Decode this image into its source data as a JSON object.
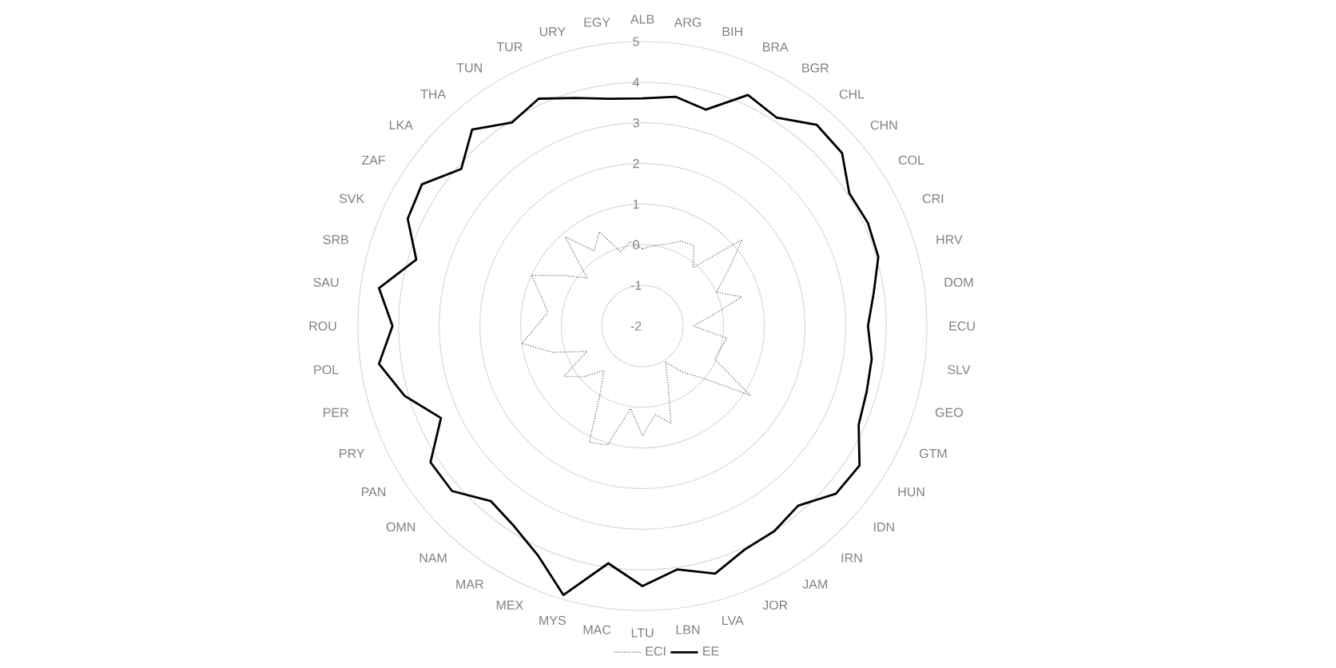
{
  "chart_data": {
    "type": "radar",
    "categories": [
      "ALB",
      "ARG",
      "BIH",
      "BRA",
      "BGR",
      "CHL",
      "CHN",
      "COL",
      "CRI",
      "HRV",
      "DOM",
      "ECU",
      "SLV",
      "GEO",
      "GTM",
      "HUN",
      "IDN",
      "IRN",
      "JAM",
      "JOR",
      "LVA",
      "LBN",
      "LTU",
      "MAC",
      "MYS",
      "MEX",
      "MAR",
      "NAM",
      "OMN",
      "PAN",
      "PRY",
      "PER",
      "POL",
      "ROU",
      "SAU",
      "SRB",
      "SVK",
      "ZAF",
      "LKA",
      "THA",
      "TUN",
      "TUR",
      "URY",
      "EGY"
    ],
    "series": [
      {
        "name": "ECI",
        "color": "#595959",
        "line_style": "dotted",
        "values": [
          -0.1,
          0.0,
          0.1,
          0.3,
          0.35,
          -0.1,
          1.25,
          0.5,
          0.0,
          0.55,
          -0.3,
          -0.75,
          0.1,
          0.0,
          -0.05,
          1.15,
          -0.05,
          -0.5,
          -0.95,
          -0.5,
          0.5,
          0.2,
          0.7,
          0.05,
          1.05,
          1.15,
          -0.1,
          -0.55,
          -0.1,
          0.3,
          -0.5,
          0.3,
          1.0,
          0.6,
          0.35,
          0.6,
          1.0,
          0.3,
          -0.2,
          0.9,
          0.2,
          0.55,
          -0.1,
          0.1
        ]
      },
      {
        "name": "EE",
        "color": "#000000",
        "line_style": "solid",
        "values": [
          3.6,
          3.7,
          3.55,
          4.25,
          4.1,
          4.55,
          4.5,
          4.05,
          4.1,
          4.05,
          3.75,
          3.55,
          3.7,
          3.75,
          3.85,
          4.35,
          4.3,
          3.85,
          4.0,
          4.05,
          4.35,
          4.05,
          4.4,
          3.9,
          4.9,
          4.2,
          3.85,
          3.7,
          4.2,
          4.2,
          3.45,
          4.1,
          4.55,
          4.15,
          4.55,
          3.8,
          4.35,
          4.45,
          3.9,
          4.4,
          3.95,
          4.15,
          3.85,
          3.65
        ]
      }
    ],
    "ylim": [
      -2,
      5
    ],
    "yticks": [
      -2,
      -1,
      0,
      1,
      2,
      3,
      4,
      5
    ],
    "grid": true,
    "legend": "bottom",
    "marker": "none"
  }
}
